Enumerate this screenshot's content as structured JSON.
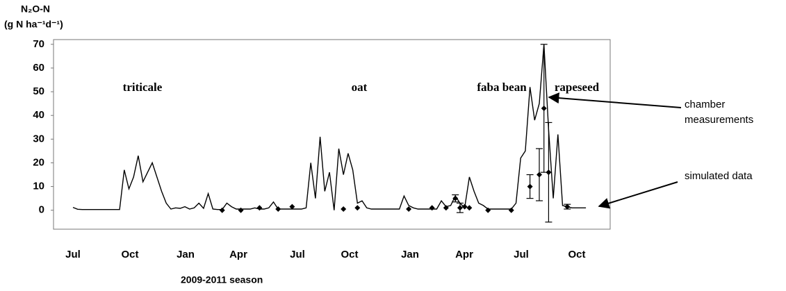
{
  "chart_data": {
    "type": "line",
    "ylabel": [
      "N₂O-N",
      "(g N ha⁻¹d⁻¹)"
    ],
    "xlabel": "2009-2011 season",
    "x_tick_labels": [
      "Jul",
      "Oct",
      "Jan",
      "Apr",
      "Jul",
      "Oct",
      "Jan",
      "Apr",
      "Jul",
      "Oct"
    ],
    "ylim": [
      -8,
      72
    ],
    "yticks": [
      0,
      10,
      20,
      30,
      40,
      50,
      60,
      70
    ],
    "crops": [
      "triticale",
      "oat",
      "faba bean",
      "rapeseed"
    ],
    "annotations": [
      {
        "lines": [
          "chamber",
          "measurements"
        ]
      },
      {
        "lines": [
          "simulated data"
        ]
      }
    ],
    "series": [
      {
        "color": "#000000",
        "values": [
          1.2,
          0.4,
          0.3,
          0.3,
          0.3,
          0.3,
          0.3,
          0.3,
          0.3,
          0.3,
          0.3,
          17,
          9,
          14,
          23,
          12,
          16,
          20,
          14,
          8,
          3,
          0.5,
          1,
          0.8,
          1.5,
          0.5,
          1,
          3,
          0.8,
          7,
          0.5,
          0.3,
          0.3,
          3,
          1.5,
          0.5,
          0.5,
          0.5,
          0.5,
          1,
          0.5,
          0.5,
          1,
          3.5,
          0.5,
          0.5,
          0.5,
          0.5,
          0.5,
          0.5,
          1,
          20,
          5,
          31,
          8,
          16,
          0,
          26,
          15,
          24,
          17,
          3,
          4,
          1,
          0.5,
          0.5,
          0.5,
          0.5,
          0.5,
          0.5,
          0.5,
          6,
          2,
          1,
          0.5,
          0.5,
          0.5,
          0.5,
          0.5,
          4,
          1.5,
          2,
          6,
          3,
          1,
          14,
          8,
          3,
          2,
          0.5,
          0.5,
          0.5,
          0.5,
          0.5,
          0.5,
          3,
          22,
          25,
          52,
          38,
          45,
          70,
          34,
          5,
          32,
          2,
          1.5,
          1,
          1,
          1,
          1
        ]
      },
      {
        "color": "#000000",
        "marker": "diamond",
        "values": [
          null,
          null,
          null,
          null,
          null,
          null,
          null,
          null,
          null,
          null,
          null,
          null,
          null,
          null,
          null,
          null,
          null,
          null,
          null,
          null,
          null,
          null,
          null,
          null,
          null,
          null,
          null,
          null,
          null,
          null,
          null,
          null,
          0,
          null,
          null,
          null,
          0,
          null,
          null,
          null,
          1,
          null,
          null,
          null,
          0.5,
          null,
          null,
          1.5,
          null,
          null,
          null,
          null,
          null,
          null,
          null,
          null,
          null,
          null,
          0.5,
          null,
          null,
          1,
          null,
          null,
          null,
          null,
          null,
          null,
          null,
          null,
          null,
          null,
          0.5,
          null,
          null,
          null,
          null,
          1,
          null,
          null,
          1,
          null,
          5,
          1,
          1.5,
          1,
          null,
          null,
          null,
          0,
          null,
          null,
          null,
          null,
          0,
          null,
          null,
          null,
          10,
          null,
          15,
          43,
          16,
          null,
          null,
          null,
          1.5,
          null,
          null,
          null,
          null
        ],
        "errors": [
          null,
          null,
          null,
          null,
          null,
          null,
          null,
          null,
          null,
          null,
          null,
          null,
          null,
          null,
          null,
          null,
          null,
          null,
          null,
          null,
          null,
          null,
          null,
          null,
          null,
          null,
          null,
          null,
          null,
          null,
          null,
          null,
          null,
          null,
          null,
          null,
          null,
          null,
          null,
          null,
          null,
          null,
          null,
          null,
          null,
          null,
          null,
          null,
          null,
          null,
          null,
          null,
          null,
          null,
          null,
          null,
          null,
          null,
          null,
          null,
          null,
          null,
          null,
          null,
          null,
          null,
          null,
          null,
          null,
          null,
          null,
          null,
          null,
          null,
          null,
          null,
          null,
          null,
          null,
          null,
          null,
          null,
          1.5,
          2,
          null,
          null,
          null,
          null,
          null,
          null,
          null,
          null,
          null,
          null,
          null,
          null,
          null,
          null,
          5,
          null,
          11,
          27,
          21,
          null,
          null,
          null,
          1,
          null,
          null,
          null,
          null
        ]
      }
    ]
  }
}
